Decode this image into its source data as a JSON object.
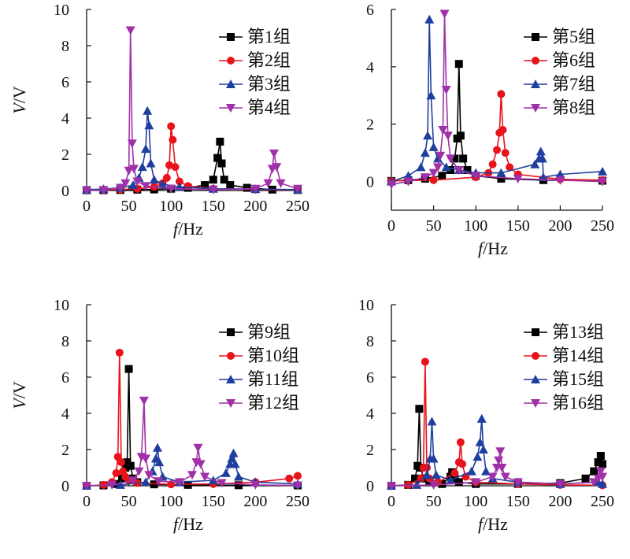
{
  "chart_data": [
    {
      "type": "line",
      "xlabel_italic": "f",
      "xlabel_unit": "/Hz",
      "ylabel_italic": "V",
      "ylabel_unit": "/V",
      "xlim": [
        0,
        250
      ],
      "ylim": [
        0,
        10
      ],
      "xticks": [
        0,
        50,
        100,
        150,
        200,
        250
      ],
      "yticks": [
        0,
        2,
        4,
        6,
        8,
        10
      ],
      "legend_position": "top-right",
      "series": [
        {
          "name": "第1组",
          "color": "#000000",
          "marker": "square",
          "x": [
            0,
            20,
            40,
            60,
            80,
            100,
            120,
            140,
            150,
            155,
            158,
            160,
            163,
            170,
            190,
            220,
            250
          ],
          "y": [
            0.02,
            0.02,
            0.03,
            0.05,
            0.06,
            0.1,
            0.15,
            0.3,
            0.6,
            1.8,
            2.7,
            1.5,
            0.6,
            0.3,
            0.15,
            0.05,
            0.03
          ]
        },
        {
          "name": "第2组",
          "color": "#e8131b",
          "marker": "circle",
          "x": [
            0,
            20,
            40,
            60,
            80,
            90,
            95,
            98,
            100,
            102,
            105,
            110,
            120,
            150,
            200,
            250
          ],
          "y": [
            0.02,
            0.03,
            0.05,
            0.1,
            0.2,
            0.4,
            0.7,
            1.4,
            3.55,
            2.8,
            1.3,
            0.5,
            0.25,
            0.1,
            0.05,
            0.03
          ]
        },
        {
          "name": "第3组",
          "color": "#1f3f9f",
          "marker": "triangle-up",
          "x": [
            0,
            20,
            40,
            55,
            62,
            66,
            70,
            72,
            74,
            76,
            80,
            90,
            110,
            150,
            200,
            250
          ],
          "y": [
            0.05,
            0.08,
            0.15,
            0.3,
            0.7,
            1.3,
            2.3,
            4.4,
            3.6,
            1.5,
            0.6,
            0.35,
            0.2,
            0.1,
            0.08,
            0.05
          ]
        },
        {
          "name": "第4组",
          "color": "#a030a8",
          "marker": "triangle-down",
          "x": [
            0,
            20,
            40,
            46,
            50,
            52,
            54,
            56,
            60,
            70,
            100,
            150,
            200,
            215,
            220,
            222,
            225,
            230,
            250
          ],
          "y": [
            0.0,
            0.03,
            0.15,
            0.4,
            1.1,
            8.85,
            2.6,
            1.2,
            0.5,
            0.25,
            0.1,
            0.05,
            0.1,
            0.4,
            1.2,
            2.05,
            1.3,
            0.4,
            0.1
          ]
        }
      ]
    },
    {
      "type": "line",
      "xlabel_italic": "f",
      "xlabel_unit": "/Hz",
      "ylabel_italic": "",
      "ylabel_unit": "",
      "xlim": [
        0,
        250
      ],
      "ylim": [
        -1,
        6
      ],
      "xticks": [
        0,
        50,
        100,
        150,
        200,
        250
      ],
      "yticks": [
        0,
        2,
        4,
        6
      ],
      "legend_position": "top-right",
      "series": [
        {
          "name": "第5组",
          "color": "#000000",
          "marker": "square",
          "x": [
            0,
            20,
            40,
            60,
            70,
            75,
            78,
            80,
            82,
            85,
            90,
            100,
            130,
            180,
            250
          ],
          "y": [
            0.02,
            0.05,
            0.1,
            0.2,
            0.4,
            0.8,
            1.5,
            4.1,
            1.6,
            0.8,
            0.4,
            0.2,
            0.1,
            0.05,
            0.03
          ]
        },
        {
          "name": "第6组",
          "color": "#e8131b",
          "marker": "circle",
          "x": [
            0,
            50,
            100,
            115,
            120,
            125,
            128,
            130,
            132,
            135,
            140,
            150,
            200,
            250
          ],
          "y": [
            0.02,
            0.05,
            0.15,
            0.3,
            0.6,
            1.1,
            1.7,
            3.05,
            1.8,
            1.0,
            0.5,
            0.25,
            0.08,
            0.05
          ]
        },
        {
          "name": "第7组",
          "color": "#1f3f9f",
          "marker": "triangle-up",
          "x": [
            0,
            20,
            35,
            40,
            43,
            45,
            47,
            50,
            55,
            65,
            80,
            100,
            130,
            170,
            175,
            177,
            179,
            180,
            200,
            250
          ],
          "y": [
            0.0,
            0.2,
            0.5,
            1.0,
            1.6,
            5.65,
            3.0,
            1.2,
            0.8,
            0.5,
            0.4,
            0.3,
            0.3,
            0.6,
            0.8,
            1.05,
            0.8,
            0.15,
            0.25,
            0.35
          ]
        },
        {
          "name": "第8组",
          "color": "#a030a8",
          "marker": "triangle-down",
          "x": [
            0,
            20,
            40,
            50,
            55,
            58,
            61,
            63,
            65,
            67,
            70,
            80,
            100,
            150,
            200,
            250
          ],
          "y": [
            -0.1,
            0.0,
            0.15,
            0.3,
            0.5,
            0.9,
            1.8,
            5.85,
            3.2,
            1.6,
            0.8,
            0.4,
            0.2,
            0.1,
            0.05,
            0.0
          ]
        }
      ]
    },
    {
      "type": "line",
      "xlabel_italic": "f",
      "xlabel_unit": "/Hz",
      "ylabel_italic": "V",
      "ylabel_unit": "/V",
      "xlim": [
        0,
        250
      ],
      "ylim": [
        0,
        10
      ],
      "xticks": [
        0,
        50,
        100,
        150,
        200,
        250
      ],
      "yticks": [
        0,
        2,
        4,
        6,
        8,
        10
      ],
      "legend_position": "top-right",
      "series": [
        {
          "name": "第9组",
          "color": "#000000",
          "marker": "square",
          "x": [
            0,
            20,
            35,
            42,
            46,
            48,
            50,
            52,
            55,
            60,
            80,
            120,
            180,
            250
          ],
          "y": [
            0.0,
            0.02,
            0.1,
            0.4,
            1.0,
            1.3,
            6.45,
            1.1,
            0.4,
            0.2,
            0.08,
            0.05,
            0.03,
            0.02
          ]
        },
        {
          "name": "第10组",
          "color": "#e8131b",
          "marker": "circle",
          "x": [
            0,
            20,
            30,
            35,
            37,
            39,
            41,
            43,
            46,
            50,
            60,
            100,
            150,
            200,
            240,
            250
          ],
          "y": [
            0.0,
            0.05,
            0.2,
            0.7,
            1.6,
            7.35,
            1.3,
            0.8,
            0.5,
            0.3,
            0.15,
            0.08,
            0.1,
            0.2,
            0.4,
            0.55
          ]
        },
        {
          "name": "第11组",
          "color": "#1f3f9f",
          "marker": "triangle-up",
          "x": [
            0,
            40,
            70,
            78,
            82,
            84,
            86,
            90,
            110,
            150,
            165,
            170,
            172,
            174,
            176,
            180,
            200,
            250
          ],
          "y": [
            0.0,
            0.05,
            0.2,
            0.8,
            1.5,
            2.1,
            1.3,
            0.5,
            0.2,
            0.3,
            0.7,
            1.2,
            1.5,
            1.8,
            1.2,
            0.5,
            0.2,
            0.1
          ]
        },
        {
          "name": "第12组",
          "color": "#a030a8",
          "marker": "triangle-down",
          "x": [
            0,
            30,
            55,
            62,
            65,
            68,
            70,
            74,
            85,
            110,
            125,
            130,
            132,
            135,
            140,
            160,
            200,
            250
          ],
          "y": [
            0.0,
            0.05,
            0.3,
            0.8,
            1.6,
            4.7,
            1.5,
            0.6,
            0.25,
            0.2,
            0.6,
            1.3,
            2.1,
            1.2,
            0.5,
            0.15,
            0.05,
            0.02
          ]
        }
      ]
    },
    {
      "type": "line",
      "xlabel_italic": "f",
      "xlabel_unit": "/Hz",
      "ylabel_italic": "",
      "ylabel_unit": "",
      "xlim": [
        0,
        250
      ],
      "ylim": [
        0,
        10
      ],
      "xticks": [
        0,
        50,
        100,
        150,
        200,
        250
      ],
      "yticks": [
        0,
        2,
        4,
        6,
        8,
        10
      ],
      "legend_position": "top-right",
      "series": [
        {
          "name": "第13组",
          "color": "#000000",
          "marker": "square",
          "x": [
            0,
            20,
            28,
            31,
            33,
            35,
            38,
            45,
            60,
            70,
            72,
            75,
            80,
            100,
            150,
            200,
            230,
            240,
            245,
            248,
            250
          ],
          "y": [
            0.0,
            0.05,
            0.4,
            1.1,
            4.25,
            1.0,
            0.4,
            0.2,
            0.1,
            0.5,
            0.75,
            0.4,
            0.2,
            0.1,
            0.1,
            0.15,
            0.4,
            0.8,
            1.3,
            1.65,
            1.2
          ]
        },
        {
          "name": "第14组",
          "color": "#e8131b",
          "marker": "circle",
          "x": [
            0,
            20,
            35,
            38,
            40,
            42,
            45,
            55,
            75,
            80,
            82,
            84,
            88,
            100,
            150,
            200,
            250
          ],
          "y": [
            0.0,
            0.05,
            0.4,
            1.0,
            6.85,
            1.0,
            0.4,
            0.2,
            0.7,
            1.3,
            2.4,
            1.2,
            0.5,
            0.2,
            0.1,
            0.05,
            0.03
          ]
        },
        {
          "name": "第15组",
          "color": "#1f3f9f",
          "marker": "triangle-up",
          "x": [
            0,
            30,
            42,
            46,
            48,
            50,
            53,
            70,
            95,
            102,
            105,
            107,
            109,
            112,
            120,
            150,
            200,
            245,
            250
          ],
          "y": [
            0.0,
            0.05,
            0.6,
            1.5,
            3.55,
            1.5,
            0.6,
            0.3,
            0.8,
            1.6,
            2.4,
            3.7,
            2.0,
            0.8,
            0.4,
            0.2,
            0.1,
            0.2,
            0.1
          ]
        },
        {
          "name": "第16组",
          "color": "#a030a8",
          "marker": "triangle-down",
          "x": [
            0,
            50,
            100,
            120,
            125,
            127,
            129,
            131,
            135,
            150,
            200,
            240,
            245,
            248,
            250
          ],
          "y": [
            0.0,
            0.05,
            0.2,
            0.5,
            1.0,
            1.4,
            1.9,
            1.0,
            0.5,
            0.2,
            0.1,
            0.2,
            0.4,
            0.8,
            0.5
          ]
        }
      ]
    }
  ]
}
